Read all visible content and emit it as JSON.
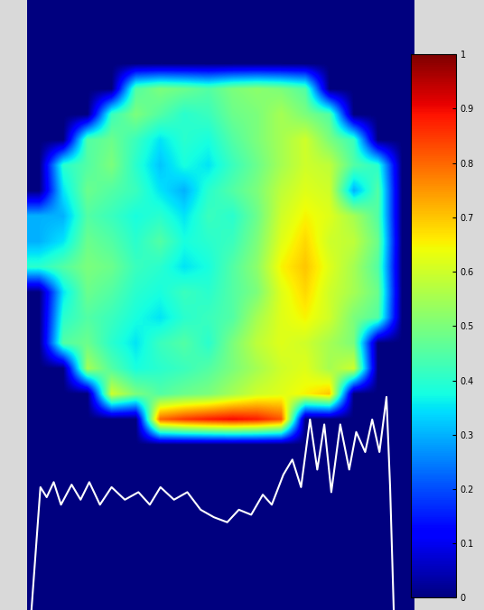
{
  "chart_data": {
    "type": "heatmap",
    "tick_labels": false,
    "cells": [
      [
        0,
        0,
        0,
        0,
        0,
        0,
        0,
        0,
        0,
        0,
        0,
        0,
        0,
        0,
        0,
        0
      ],
      [
        0,
        0,
        0,
        0,
        0,
        0,
        0,
        0,
        0,
        0,
        0,
        0,
        0,
        0,
        0,
        0
      ],
      [
        0,
        0,
        0,
        0,
        0,
        0,
        0,
        0,
        0,
        0,
        0,
        0,
        0,
        0,
        0,
        0
      ],
      [
        0,
        0,
        0,
        0,
        0.45,
        0.5,
        0.48,
        0.45,
        0.5,
        0.52,
        0.5,
        0.45,
        0,
        0,
        0,
        0
      ],
      [
        0,
        0,
        0,
        0.42,
        0.5,
        0.45,
        0.4,
        0.42,
        0.48,
        0.5,
        0.55,
        0.5,
        0.45,
        0,
        0,
        0
      ],
      [
        0,
        0,
        0.45,
        0.48,
        0.42,
        0.35,
        0.4,
        0.38,
        0.45,
        0.5,
        0.55,
        0.6,
        0.5,
        0.42,
        0,
        0
      ],
      [
        0,
        0.4,
        0.45,
        0.5,
        0.4,
        0.32,
        0.38,
        0.35,
        0.42,
        0.48,
        0.55,
        0.6,
        0.58,
        0.45,
        0.4,
        0
      ],
      [
        0,
        0.35,
        0.48,
        0.45,
        0.42,
        0.35,
        0.3,
        0.4,
        0.45,
        0.5,
        0.58,
        0.62,
        0.6,
        0.3,
        0.45,
        0
      ],
      [
        0.3,
        0.3,
        0.45,
        0.42,
        0.38,
        0.4,
        0.35,
        0.42,
        0.4,
        0.48,
        0.6,
        0.65,
        0.62,
        0.55,
        0.45,
        0
      ],
      [
        0.3,
        0.35,
        0.48,
        0.45,
        0.4,
        0.45,
        0.38,
        0.4,
        0.42,
        0.5,
        0.62,
        0.68,
        0.6,
        0.58,
        0.48,
        0
      ],
      [
        0.4,
        0.45,
        0.5,
        0.48,
        0.42,
        0.4,
        0.35,
        0.38,
        0.45,
        0.52,
        0.65,
        0.7,
        0.62,
        0.55,
        0.45,
        0
      ],
      [
        0,
        0.35,
        0.48,
        0.45,
        0.4,
        0.38,
        0.42,
        0.4,
        0.45,
        0.5,
        0.62,
        0.68,
        0.6,
        0.55,
        0.48,
        0
      ],
      [
        0,
        0.4,
        0.45,
        0.42,
        0.38,
        0.35,
        0.4,
        0.42,
        0.45,
        0.55,
        0.62,
        0.65,
        0.6,
        0.5,
        0.45,
        0
      ],
      [
        0,
        0.45,
        0.48,
        0.4,
        0.35,
        0.42,
        0.45,
        0.4,
        0.5,
        0.58,
        0.62,
        0.6,
        0.55,
        0.5,
        0,
        0
      ],
      [
        0,
        0,
        0.55,
        0.45,
        0.38,
        0.4,
        0.42,
        0.45,
        0.5,
        0.55,
        0.6,
        0.62,
        0.55,
        0.6,
        0,
        0
      ],
      [
        0,
        0,
        0,
        0.6,
        0.5,
        0.45,
        0.48,
        0.5,
        0.55,
        0.6,
        0.62,
        0.65,
        0.7,
        0,
        0,
        0
      ],
      [
        0,
        0,
        0,
        0,
        0,
        0.8,
        0.85,
        0.88,
        0.9,
        0.88,
        0.82,
        0,
        0,
        0,
        0,
        0
      ],
      [
        0,
        0,
        0,
        0,
        0,
        0,
        0,
        0,
        0,
        0,
        0,
        0,
        0,
        0,
        0,
        0
      ],
      [
        0,
        0,
        0,
        0,
        0,
        0,
        0,
        0,
        0,
        0,
        0,
        0,
        0,
        0,
        0,
        0
      ],
      [
        0,
        0,
        0,
        0,
        0,
        0,
        0,
        0,
        0,
        0,
        0,
        0,
        0,
        0,
        0,
        0
      ],
      [
        0,
        0,
        0,
        0,
        0,
        0,
        0,
        0,
        0,
        0,
        0,
        0,
        0,
        0,
        0,
        0
      ],
      [
        0,
        0,
        0,
        0,
        0,
        0,
        0,
        0,
        0,
        0,
        0,
        0,
        0,
        0,
        0,
        0
      ],
      [
        0,
        0,
        0,
        0,
        0,
        0,
        0,
        0,
        0,
        0,
        0,
        0,
        0,
        0,
        0,
        0
      ],
      [
        0,
        0,
        0,
        0,
        0,
        0,
        0,
        0,
        0,
        0,
        0,
        0,
        0,
        0,
        0,
        0
      ]
    ],
    "colorbar": {
      "range": [
        0,
        1
      ],
      "ticks": [
        0,
        0.1,
        0.2,
        0.3,
        0.4,
        0.5,
        0.6,
        0.7,
        0.8,
        0.9,
        1
      ]
    },
    "profile": {
      "type": "line",
      "color": "#ffffff",
      "x": [
        0.18,
        0.55,
        0.81,
        1.1,
        1.4,
        1.84,
        2.21,
        2.57,
        3.01,
        3.49,
        4.04,
        4.6,
        5.07,
        5.51,
        6.07,
        6.62,
        7.17,
        7.72,
        8.27,
        8.75,
        9.26,
        9.74,
        10.11,
        10.59,
        10.96,
        11.32,
        11.69,
        11.99,
        12.28,
        12.57,
        12.94,
        13.31,
        13.6,
        13.97,
        14.26,
        14.56,
        14.85,
        15.0,
        15.15
      ],
      "values": [
        0,
        0.49,
        0.45,
        0.51,
        0.42,
        0.5,
        0.44,
        0.51,
        0.42,
        0.49,
        0.44,
        0.47,
        0.42,
        0.49,
        0.44,
        0.47,
        0.4,
        0.37,
        0.35,
        0.4,
        0.38,
        0.46,
        0.42,
        0.54,
        0.6,
        0.49,
        0.76,
        0.56,
        0.74,
        0.47,
        0.74,
        0.56,
        0.71,
        0.63,
        0.76,
        0.63,
        0.85,
        0.49,
        0
      ]
    }
  }
}
